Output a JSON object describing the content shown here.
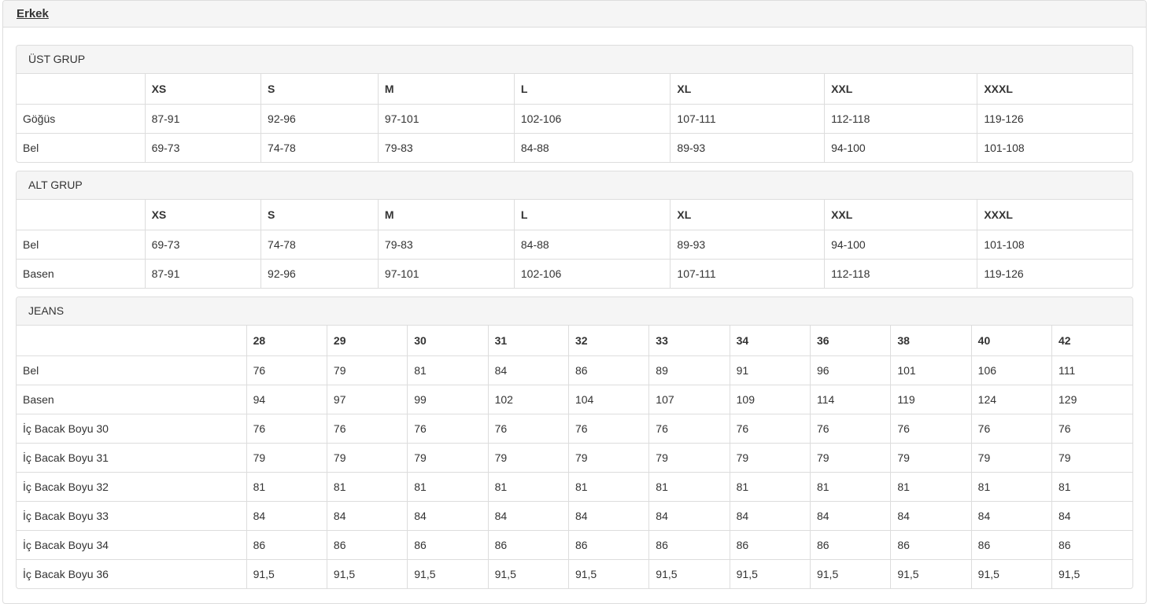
{
  "header": {
    "group_link": "Erkek"
  },
  "colors": {
    "panel_heading_bg": "#f5f5f5",
    "border": "#dddddd",
    "text": "#333333"
  },
  "panels": [
    {
      "title": "ÜST GRUP",
      "columns": [
        "XS",
        "S",
        "M",
        "L",
        "XL",
        "XXL",
        "XXXL"
      ],
      "rows": [
        {
          "label": "Göğüs",
          "values": [
            "87-91",
            "92-96",
            "97-101",
            "102-106",
            "107-111",
            "112-118",
            "119-126"
          ]
        },
        {
          "label": "Bel",
          "values": [
            "69-73",
            "74-78",
            "79-83",
            "84-88",
            "89-93",
            "94-100",
            "101-108"
          ]
        }
      ]
    },
    {
      "title": "ALT GRUP",
      "columns": [
        "XS",
        "S",
        "M",
        "L",
        "XL",
        "XXL",
        "XXXL"
      ],
      "rows": [
        {
          "label": "Bel",
          "values": [
            "69-73",
            "74-78",
            "79-83",
            "84-88",
            "89-93",
            "94-100",
            "101-108"
          ]
        },
        {
          "label": "Basen",
          "values": [
            "87-91",
            "92-96",
            "97-101",
            "102-106",
            "107-111",
            "112-118",
            "119-126"
          ]
        }
      ]
    },
    {
      "title": "JEANS",
      "columns": [
        "28",
        "29",
        "30",
        "31",
        "32",
        "33",
        "34",
        "36",
        "38",
        "40",
        "42"
      ],
      "rows": [
        {
          "label": "Bel",
          "values": [
            "76",
            "79",
            "81",
            "84",
            "86",
            "89",
            "91",
            "96",
            "101",
            "106",
            "111"
          ]
        },
        {
          "label": "Basen",
          "values": [
            "94",
            "97",
            "99",
            "102",
            "104",
            "107",
            "109",
            "114",
            "119",
            "124",
            "129"
          ]
        },
        {
          "label": "İç Bacak Boyu 30",
          "values": [
            "76",
            "76",
            "76",
            "76",
            "76",
            "76",
            "76",
            "76",
            "76",
            "76",
            "76"
          ]
        },
        {
          "label": "İç Bacak Boyu 31",
          "values": [
            "79",
            "79",
            "79",
            "79",
            "79",
            "79",
            "79",
            "79",
            "79",
            "79",
            "79"
          ]
        },
        {
          "label": "İç Bacak Boyu 32",
          "values": [
            "81",
            "81",
            "81",
            "81",
            "81",
            "81",
            "81",
            "81",
            "81",
            "81",
            "81"
          ]
        },
        {
          "label": "İç Bacak Boyu 33",
          "values": [
            "84",
            "84",
            "84",
            "84",
            "84",
            "84",
            "84",
            "84",
            "84",
            "84",
            "84"
          ]
        },
        {
          "label": "İç Bacak Boyu 34",
          "values": [
            "86",
            "86",
            "86",
            "86",
            "86",
            "86",
            "86",
            "86",
            "86",
            "86",
            "86"
          ]
        },
        {
          "label": "İç Bacak Boyu 36",
          "values": [
            "91,5",
            "91,5",
            "91,5",
            "91,5",
            "91,5",
            "91,5",
            "91,5",
            "91,5",
            "91,5",
            "91,5",
            "91,5"
          ]
        }
      ]
    }
  ]
}
